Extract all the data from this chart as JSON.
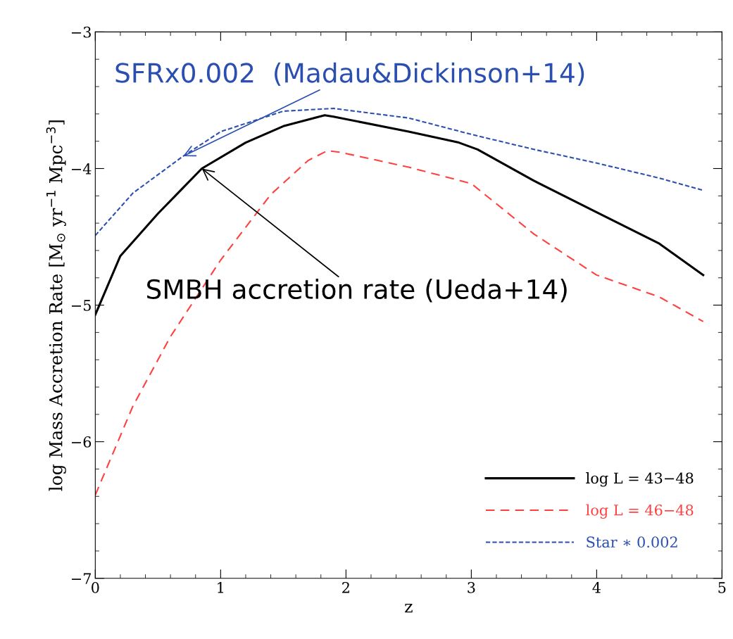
{
  "chart_data": {
    "type": "line",
    "xlabel": "z",
    "ylabel": "log Mass Accretion Rate [M$_{⊙}$ yr$^{−1}$ Mpc$^{−3}$]",
    "xlim": [
      0,
      5
    ],
    "ylim": [
      -7,
      -3
    ],
    "xticks": [
      0,
      1,
      2,
      3,
      4,
      5
    ],
    "yticks": [
      -7,
      -6,
      -5,
      -4,
      -3
    ],
    "legend": "bottom right",
    "grid": false,
    "series": [
      {
        "name": "log L = 43−48",
        "color": "#000000",
        "line_style": "solid",
        "x": [
          0,
          0.2,
          0.5,
          0.85,
          1.2,
          1.5,
          1.83,
          1.9,
          2.5,
          2.9,
          3.05,
          3.5,
          4,
          4.5,
          4.85
        ],
        "values": [
          -5.07,
          -4.64,
          -4.33,
          -4.0,
          -3.81,
          -3.69,
          -3.61,
          -3.62,
          -3.73,
          -3.81,
          -3.86,
          -4.09,
          -4.32,
          -4.55,
          -4.78
        ]
      },
      {
        "name": "log L = 46−48",
        "color": "#ff4040",
        "line_style": "dashed",
        "x": [
          0,
          0.3,
          0.6,
          1.0,
          1.4,
          1.7,
          1.85,
          1.95,
          2.5,
          3.0,
          3.5,
          4,
          4.5,
          4.85
        ],
        "values": [
          -6.39,
          -5.74,
          -5.23,
          -4.67,
          -4.19,
          -3.94,
          -3.87,
          -3.88,
          -3.99,
          -4.11,
          -4.48,
          -4.78,
          -4.94,
          -5.12
        ]
      },
      {
        "name": "Star ∗ 0.002",
        "color": "#2a4fb0",
        "line_style": "dotted",
        "x": [
          0,
          0.3,
          0.7,
          1.0,
          1.5,
          1.9,
          2.5,
          3,
          3.5,
          4,
          4.5,
          4.85
        ],
        "values": [
          -4.49,
          -4.18,
          -3.91,
          -3.73,
          -3.58,
          -3.56,
          -3.63,
          -3.75,
          -3.86,
          -3.96,
          -4.07,
          -4.16
        ]
      }
    ],
    "annotations": [
      {
        "text": "SFRx0.002  (Madau&Dickinson+14)",
        "x": 0.7,
        "y": -3.91
      },
      {
        "text": "SMBH accretion rate (Ueda+14)",
        "x": 0.85,
        "y": -4.0
      }
    ]
  }
}
